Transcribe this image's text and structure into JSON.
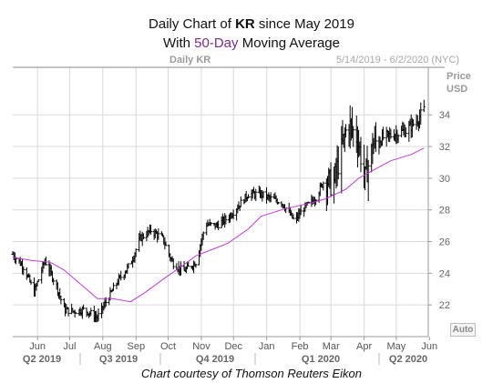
{
  "header": {
    "line1_prefix": "Daily Chart of ",
    "line1_ticker": "KR",
    "line1_suffix": " since May 2019",
    "line2_prefix": "With ",
    "line2_ma": "50-Day",
    "line2_suffix": " Moving Average"
  },
  "panel": {
    "label": "Daily KR",
    "range": "5/14/2019 - 6/2/2020 (NYC)",
    "price_label": "Price",
    "currency_label": "USD",
    "auto_button": "Auto"
  },
  "credit": "Chart courtesy of Thomson Reuters Eikon",
  "colors": {
    "bars": "#000000",
    "ma_line": "#c23bd6",
    "grid": "#d9d9d9",
    "axis": "#999999"
  },
  "chart_data": {
    "type": "line",
    "title": "Daily Chart of KR since May 2019",
    "subtitle": "With 50-Day Moving Average",
    "xlabel": "",
    "ylabel": "Price USD",
    "ylim": [
      20,
      37
    ],
    "y_ticks": [
      22,
      24,
      26,
      28,
      30,
      32,
      34
    ],
    "x_tick_labels": [
      "Jun",
      "Jul",
      "Aug",
      "Sep",
      "Oct",
      "Nov",
      "Dec",
      "Jan",
      "Feb",
      "Mar",
      "Apr",
      "May",
      "Jun"
    ],
    "quarter_labels": [
      "Q2 2019",
      "Q3 2019",
      "Q4 2019",
      "Q1 2020",
      "Q2 2020"
    ],
    "grid": true,
    "series": [
      {
        "name": "KR",
        "style": "ohlc-bars",
        "x": [
          "2019-05-14",
          "2019-05-24",
          "2019-06-03",
          "2019-06-13",
          "2019-06-24",
          "2019-07-01",
          "2019-07-10",
          "2019-07-20",
          "2019-08-01",
          "2019-08-10",
          "2019-08-20",
          "2019-09-01",
          "2019-09-10",
          "2019-09-20",
          "2019-10-01",
          "2019-10-10",
          "2019-10-20",
          "2019-11-01",
          "2019-11-10",
          "2019-11-20",
          "2019-12-01",
          "2019-12-10",
          "2019-12-20",
          "2020-01-01",
          "2020-01-10",
          "2020-01-20",
          "2020-02-01",
          "2020-02-10",
          "2020-02-20",
          "2020-03-01",
          "2020-03-08",
          "2020-03-15",
          "2020-03-22",
          "2020-03-31",
          "2020-04-07",
          "2020-04-15",
          "2020-04-25",
          "2020-05-05",
          "2020-05-15",
          "2020-05-25",
          "2020-06-01"
        ],
        "values": [
          25.2,
          24.4,
          22.8,
          24.8,
          23.2,
          21.7,
          21.6,
          21.7,
          21.2,
          22.3,
          23.5,
          24.6,
          26.2,
          26.7,
          26.2,
          24.7,
          24.1,
          24.7,
          27.1,
          27.0,
          27.5,
          28.2,
          29.0,
          29.0,
          28.7,
          28.5,
          27.3,
          28.1,
          28.7,
          30.0,
          29.5,
          31.5,
          33.5,
          32.5,
          30.0,
          32.2,
          32.6,
          32.8,
          33.0,
          33.6,
          34.3
        ]
      },
      {
        "name": "50-Day",
        "style": "line",
        "x": [
          "2019-05-14",
          "2019-06-01",
          "2019-06-18",
          "2019-07-01",
          "2019-07-20",
          "2019-08-01",
          "2019-08-15",
          "2019-09-01",
          "2019-09-15",
          "2019-10-01",
          "2019-10-20",
          "2019-11-01",
          "2019-11-20",
          "2019-12-01",
          "2019-12-20",
          "2020-01-01",
          "2020-01-20",
          "2020-02-01",
          "2020-02-20",
          "2020-03-01",
          "2020-03-20",
          "2020-04-01",
          "2020-04-20",
          "2020-05-01",
          "2020-05-20",
          "2020-06-01"
        ],
        "values": [
          25.0,
          24.8,
          24.7,
          24.2,
          23.1,
          22.4,
          22.4,
          22.2,
          22.8,
          23.6,
          24.5,
          25.1,
          25.6,
          25.9,
          26.8,
          27.6,
          28.0,
          28.2,
          28.5,
          28.7,
          29.3,
          30.0,
          30.7,
          31.1,
          31.5,
          31.9
        ]
      }
    ]
  }
}
